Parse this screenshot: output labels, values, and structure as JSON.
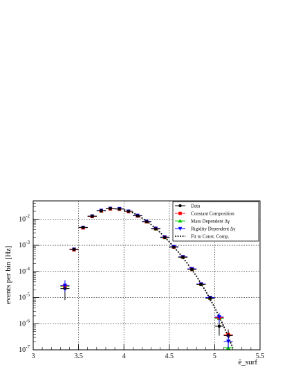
{
  "chart_data": {
    "type": "scatter",
    "xlabel": "ẽ_surf",
    "ylabel": "events per bin [Hz]",
    "xlim": [
      3,
      5.5
    ],
    "ylim": [
      1e-07,
      0.05
    ],
    "yscale": "log",
    "grid": true,
    "legend_position": "top-right",
    "x_ticks": [
      "3",
      "3.5",
      "4",
      "4.5",
      "5",
      "5.5"
    ],
    "y_tick_exponents": [
      "-7",
      "-6",
      "-5",
      "-4",
      "-3",
      "-2"
    ],
    "series": [
      {
        "name": "Data",
        "marker": "circle",
        "color": "#000000",
        "x": [
          3.35,
          3.45,
          3.55,
          3.65,
          3.75,
          3.85,
          3.95,
          4.05,
          4.15,
          4.25,
          4.35,
          4.45,
          4.55,
          4.65,
          4.75,
          4.85,
          4.95,
          5.05,
          5.15
        ],
        "y": [
          2.2e-05,
          0.0007,
          0.0048,
          0.013,
          0.021,
          0.0255,
          0.0245,
          0.02,
          0.0135,
          0.008,
          0.0043,
          0.002,
          0.00085,
          0.00035,
          0.00012,
          3.2e-05,
          9.5e-06,
          8e-07,
          3.5e-07
        ],
        "yerr_low": [
          1.4e-05,
          0.00012,
          0.0005,
          0.001,
          0.0015,
          0.0018,
          0.0018,
          0.0015,
          0.0011,
          0.0006,
          0.00035,
          0.00018,
          8e-05,
          3.5e-05,
          1.4e-05,
          5e-06,
          2.2e-06,
          4.5e-07,
          2e-07
        ],
        "yerr_high": [
          1.4e-05,
          0.00012,
          0.0005,
          0.001,
          0.0015,
          0.0018,
          0.0018,
          0.0015,
          0.0011,
          0.0006,
          0.00035,
          0.00018,
          8e-05,
          3.5e-05,
          1.4e-05,
          5e-06,
          2.2e-06,
          6e-07,
          2.5e-07
        ]
      },
      {
        "name": "Constant Composition",
        "marker": "square",
        "color": "#ff0000",
        "x": [
          3.35,
          3.45,
          3.55,
          3.65,
          3.75,
          3.85,
          3.95,
          4.05,
          4.15,
          4.25,
          4.35,
          4.45,
          4.55,
          4.65,
          4.75,
          4.85,
          4.95,
          5.05,
          5.15
        ],
        "y": [
          2.8e-05,
          0.00068,
          0.0047,
          0.0128,
          0.021,
          0.025,
          0.0245,
          0.0198,
          0.0135,
          0.0081,
          0.0044,
          0.00205,
          0.00087,
          0.00036,
          0.000125,
          3.3e-05,
          9.8e-06,
          1.7e-06,
          3.8e-07
        ]
      },
      {
        "name": "Mass Dependent Δγ",
        "marker": "triangle-up",
        "color": "#00cc00",
        "x": [
          3.35,
          3.45,
          3.55,
          3.65,
          3.75,
          3.85,
          3.95,
          4.05,
          4.15,
          4.25,
          4.35,
          4.45,
          4.55,
          4.65,
          4.75,
          4.85,
          4.95,
          5.05,
          5.15
        ],
        "y": [
          2.7e-05,
          0.00069,
          0.0048,
          0.013,
          0.021,
          0.025,
          0.0245,
          0.02,
          0.0135,
          0.008,
          0.0043,
          0.002,
          0.00086,
          0.00035,
          0.000122,
          3.2e-05,
          9.5e-06,
          1.6e-06,
          1.2e-07
        ]
      },
      {
        "name": "Rigidity Dependent Δγ",
        "marker": "triangle-down",
        "color": "#0000ff",
        "x": [
          3.35,
          3.45,
          3.55,
          3.65,
          3.75,
          3.85,
          3.95,
          4.05,
          4.15,
          4.25,
          4.35,
          4.45,
          4.55,
          4.65,
          4.75,
          4.85,
          4.95,
          5.05,
          5.15
        ],
        "y": [
          2.9e-05,
          0.0007,
          0.0048,
          0.013,
          0.0215,
          0.0255,
          0.025,
          0.02,
          0.0138,
          0.0082,
          0.0044,
          0.00205,
          0.00088,
          0.00036,
          0.000125,
          3.3e-05,
          1e-05,
          1.8e-06,
          2.1e-07
        ]
      },
      {
        "name": "Fit to Const. Comp.",
        "style": "dotted-line",
        "color": "#000000",
        "x": [
          4.0,
          4.1,
          4.2,
          4.3,
          4.4,
          4.5,
          4.6,
          4.7,
          4.8,
          4.9,
          5.0,
          5.1,
          5.2
        ],
        "y": [
          0.023,
          0.0175,
          0.011,
          0.0062,
          0.0031,
          0.00135,
          0.00055,
          0.0002,
          6.5e-05,
          1.8e-05,
          4.2e-06,
          8e-07,
          1.2e-07
        ]
      }
    ]
  }
}
